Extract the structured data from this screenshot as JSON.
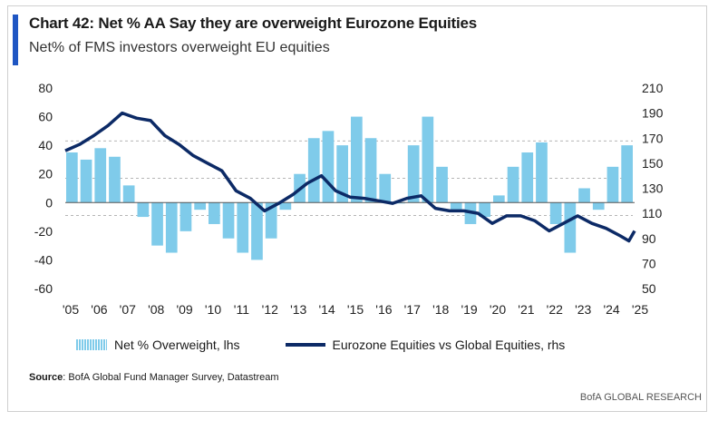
{
  "header": {
    "title": "Chart 42: Net % AA Say they are overweight Eurozone Equities",
    "subtitle": "Net% of FMS investors overweight EU equities"
  },
  "footer": {
    "source_label": "Source",
    "source_text": ": BofA Global Fund Manager Survey, Datastream",
    "brand": "BofA GLOBAL RESEARCH"
  },
  "colors": {
    "bars": "#7fcbea",
    "line": "#0c2a66",
    "accent": "#1f56c3",
    "zero": "#555555",
    "ref": "#b5b5b5"
  },
  "chart_data": {
    "type": "bar+line",
    "categories": [
      "'05",
      "'06",
      "'07",
      "'08",
      "'09",
      "'10",
      "'11",
      "'12",
      "'13",
      "'14",
      "'15",
      "'16",
      "'17",
      "'18",
      "'19",
      "'20",
      "'21",
      "'22",
      "'23",
      "'24",
      "'25"
    ],
    "ylim_left": [
      -60,
      80
    ],
    "left_ticks": [
      80,
      60,
      40,
      20,
      0,
      -20,
      -40,
      -60
    ],
    "ylim_right": [
      50,
      210
    ],
    "right_ticks": [
      210,
      190,
      170,
      150,
      130,
      110,
      90,
      70,
      50
    ],
    "reference_lines_left": [
      43,
      17,
      -9
    ],
    "legend": [
      "Net % Overweight, lhs",
      "Eurozone Equities vs Global Equities, rhs"
    ],
    "series": [
      {
        "name": "Net % Overweight, lhs",
        "kind": "bar",
        "x": [
          2005.0,
          2005.5,
          2006.0,
          2006.5,
          2007.0,
          2007.5,
          2008.0,
          2008.5,
          2009.0,
          2009.5,
          2010.0,
          2010.5,
          2011.0,
          2011.5,
          2012.0,
          2012.5,
          2013.0,
          2013.5,
          2014.0,
          2014.5,
          2015.0,
          2015.5,
          2016.0,
          2016.5,
          2017.0,
          2017.5,
          2018.0,
          2018.5,
          2019.0,
          2019.5,
          2020.0,
          2020.5,
          2021.0,
          2021.5,
          2022.0,
          2022.5,
          2023.0,
          2023.5,
          2024.0,
          2024.5
        ],
        "values": [
          35,
          30,
          38,
          32,
          12,
          -10,
          -30,
          -35,
          -20,
          -5,
          -15,
          -25,
          -35,
          -40,
          -25,
          -5,
          20,
          45,
          50,
          40,
          60,
          45,
          20,
          0,
          40,
          60,
          25,
          -5,
          -15,
          -10,
          5,
          25,
          35,
          42,
          -15,
          -35,
          10,
          -5,
          25,
          40
        ]
      },
      {
        "name": "Eurozone Equities vs Global Equities, rhs",
        "kind": "line",
        "x": [
          2005.0,
          2005.5,
          2006.0,
          2006.5,
          2007.0,
          2007.5,
          2008.0,
          2008.5,
          2009.0,
          2009.5,
          2010.0,
          2010.5,
          2011.0,
          2011.5,
          2012.0,
          2012.5,
          2013.0,
          2013.5,
          2014.0,
          2014.5,
          2015.0,
          2015.5,
          2016.0,
          2016.5,
          2017.0,
          2017.5,
          2018.0,
          2018.5,
          2019.0,
          2019.5,
          2020.0,
          2020.5,
          2021.0,
          2021.5,
          2022.0,
          2022.5,
          2023.0,
          2023.5,
          2024.0,
          2024.5,
          2024.8,
          2025.0
        ],
        "values": [
          160,
          165,
          172,
          180,
          190,
          186,
          184,
          172,
          165,
          156,
          150,
          144,
          128,
          122,
          112,
          118,
          125,
          134,
          140,
          128,
          123,
          122,
          120,
          118,
          122,
          124,
          114,
          112,
          112,
          110,
          102,
          108,
          108,
          104,
          96,
          102,
          108,
          102,
          98,
          92,
          88,
          96
        ]
      }
    ]
  }
}
